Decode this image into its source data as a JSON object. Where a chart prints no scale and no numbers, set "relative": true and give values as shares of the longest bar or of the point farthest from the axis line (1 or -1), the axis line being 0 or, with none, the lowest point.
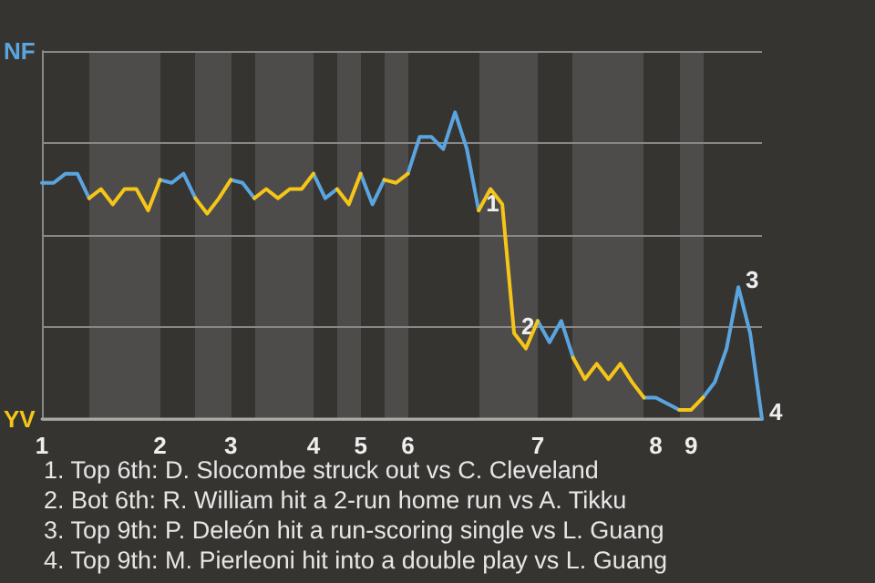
{
  "chart_data": {
    "type": "line",
    "categories": [
      "1",
      null,
      null,
      null,
      null,
      null,
      null,
      null,
      null,
      null,
      "2",
      null,
      null,
      null,
      null,
      null,
      "3",
      null,
      null,
      null,
      null,
      null,
      null,
      "4",
      null,
      null,
      null,
      "5",
      null,
      null,
      null,
      "6",
      null,
      null,
      null,
      null,
      null,
      null,
      null,
      null,
      null,
      null,
      "7",
      null,
      null,
      null,
      null,
      null,
      null,
      null,
      null,
      null,
      "8",
      null,
      null,
      "9",
      null,
      null,
      null,
      null,
      null,
      null
    ],
    "relative": true,
    "series": [
      {
        "color": "#5aa5e0",
        "values": [
          0.77,
          0.77,
          0.8,
          0.8,
          0.72,
          null,
          null,
          null,
          null,
          null,
          0.78,
          0.77,
          0.8,
          0.72,
          null,
          null,
          0.78,
          0.77,
          0.72,
          null,
          null,
          null,
          null,
          0.8,
          0.72,
          0.75,
          null,
          0.8,
          0.7,
          0.78,
          null,
          0.8,
          0.92,
          0.92,
          0.88,
          1,
          0.88,
          0.68,
          null,
          null,
          null,
          null,
          0.32,
          0.25,
          0.32,
          0.2,
          null,
          null,
          null,
          null,
          null,
          0.07,
          0.07,
          0.05,
          0.03,
          null,
          0.07,
          0.12,
          0.23,
          0.43,
          0.28,
          0
        ]
      },
      {
        "color": "#f5c518",
        "values": [
          null,
          null,
          null,
          null,
          0.72,
          0.75,
          0.7,
          0.75,
          0.75,
          0.68,
          0.78,
          null,
          null,
          0.72,
          0.67,
          0.72,
          0.78,
          null,
          0.72,
          0.75,
          0.72,
          0.75,
          0.75,
          0.8,
          null,
          0.75,
          0.7,
          0.8,
          null,
          0.78,
          0.77,
          0.8,
          null,
          null,
          null,
          null,
          null,
          0.68,
          0.75,
          0.7,
          0.28,
          0.23,
          0.32,
          null,
          null,
          0.2,
          0.13,
          0.18,
          0.13,
          0.18,
          0.12,
          0.07,
          null,
          null,
          0.03,
          0.03,
          0.07,
          null,
          null,
          null,
          null,
          null
        ]
      }
    ],
    "grid": "y",
    "annotations": [
      "NF",
      "YV",
      "1",
      "2",
      "3",
      "4",
      "1. Top 6th: D. Slocombe struck out vs C. Cleveland",
      "2. Bot 6th: R. William hit a 2-run home run vs A. Tikku",
      "3. Top 9th: P. Deleón hit a run-scoring single vs L. Guang",
      "4. Top 9th: M. Pierleoni hit into a double play vs L. Guang"
    ]
  }
}
